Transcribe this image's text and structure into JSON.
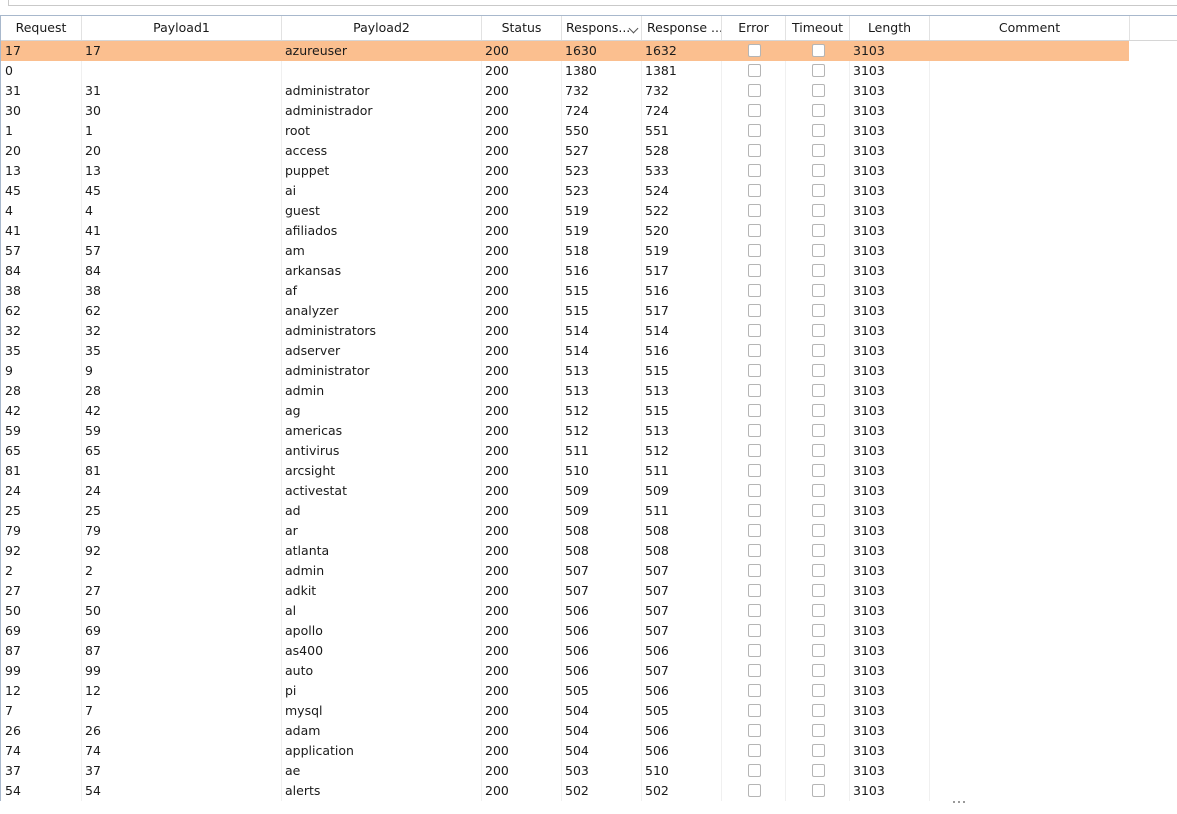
{
  "table": {
    "columns": [
      {
        "label": "Request"
      },
      {
        "label": "Payload1"
      },
      {
        "label": "Payload2"
      },
      {
        "label": "Status"
      },
      {
        "label": "Respons..."
      },
      {
        "label": "Response ..."
      },
      {
        "label": "Error"
      },
      {
        "label": "Timeout"
      },
      {
        "label": "Length"
      },
      {
        "label": "Comment"
      }
    ],
    "sorted_column": "Respons...",
    "sort_direction": "descending",
    "selected_row_color": "#fbbf8f",
    "rows": [
      {
        "request": "17",
        "payload1": "17",
        "payload2": "azureuser",
        "status": "200",
        "resp_received": "1630",
        "resp_completed": "1632",
        "error": false,
        "timeout": false,
        "length": "3103",
        "comment": "",
        "selected": true
      },
      {
        "request": "0",
        "payload1": "",
        "payload2": "",
        "status": "200",
        "resp_received": "1380",
        "resp_completed": "1381",
        "error": false,
        "timeout": false,
        "length": "3103",
        "comment": ""
      },
      {
        "request": "31",
        "payload1": "31",
        "payload2": "administrator",
        "status": "200",
        "resp_received": "732",
        "resp_completed": "732",
        "error": false,
        "timeout": false,
        "length": "3103",
        "comment": ""
      },
      {
        "request": "30",
        "payload1": "30",
        "payload2": "administrador",
        "status": "200",
        "resp_received": "724",
        "resp_completed": "724",
        "error": false,
        "timeout": false,
        "length": "3103",
        "comment": ""
      },
      {
        "request": "1",
        "payload1": "1",
        "payload2": "root",
        "status": "200",
        "resp_received": "550",
        "resp_completed": "551",
        "error": false,
        "timeout": false,
        "length": "3103",
        "comment": ""
      },
      {
        "request": "20",
        "payload1": "20",
        "payload2": "access",
        "status": "200",
        "resp_received": "527",
        "resp_completed": "528",
        "error": false,
        "timeout": false,
        "length": "3103",
        "comment": ""
      },
      {
        "request": "13",
        "payload1": "13",
        "payload2": "puppet",
        "status": "200",
        "resp_received": "523",
        "resp_completed": "533",
        "error": false,
        "timeout": false,
        "length": "3103",
        "comment": ""
      },
      {
        "request": "45",
        "payload1": "45",
        "payload2": "ai",
        "status": "200",
        "resp_received": "523",
        "resp_completed": "524",
        "error": false,
        "timeout": false,
        "length": "3103",
        "comment": ""
      },
      {
        "request": "4",
        "payload1": "4",
        "payload2": "guest",
        "status": "200",
        "resp_received": "519",
        "resp_completed": "522",
        "error": false,
        "timeout": false,
        "length": "3103",
        "comment": ""
      },
      {
        "request": "41",
        "payload1": "41",
        "payload2": "afiliados",
        "status": "200",
        "resp_received": "519",
        "resp_completed": "520",
        "error": false,
        "timeout": false,
        "length": "3103",
        "comment": ""
      },
      {
        "request": "57",
        "payload1": "57",
        "payload2": "am",
        "status": "200",
        "resp_received": "518",
        "resp_completed": "519",
        "error": false,
        "timeout": false,
        "length": "3103",
        "comment": ""
      },
      {
        "request": "84",
        "payload1": "84",
        "payload2": "arkansas",
        "status": "200",
        "resp_received": "516",
        "resp_completed": "517",
        "error": false,
        "timeout": false,
        "length": "3103",
        "comment": ""
      },
      {
        "request": "38",
        "payload1": "38",
        "payload2": "af",
        "status": "200",
        "resp_received": "515",
        "resp_completed": "516",
        "error": false,
        "timeout": false,
        "length": "3103",
        "comment": ""
      },
      {
        "request": "62",
        "payload1": "62",
        "payload2": "analyzer",
        "status": "200",
        "resp_received": "515",
        "resp_completed": "517",
        "error": false,
        "timeout": false,
        "length": "3103",
        "comment": ""
      },
      {
        "request": "32",
        "payload1": "32",
        "payload2": "administrators",
        "status": "200",
        "resp_received": "514",
        "resp_completed": "514",
        "error": false,
        "timeout": false,
        "length": "3103",
        "comment": ""
      },
      {
        "request": "35",
        "payload1": "35",
        "payload2": "adserver",
        "status": "200",
        "resp_received": "514",
        "resp_completed": "516",
        "error": false,
        "timeout": false,
        "length": "3103",
        "comment": ""
      },
      {
        "request": "9",
        "payload1": "9",
        "payload2": "administrator",
        "status": "200",
        "resp_received": "513",
        "resp_completed": "515",
        "error": false,
        "timeout": false,
        "length": "3103",
        "comment": ""
      },
      {
        "request": "28",
        "payload1": "28",
        "payload2": "admin",
        "status": "200",
        "resp_received": "513",
        "resp_completed": "513",
        "error": false,
        "timeout": false,
        "length": "3103",
        "comment": ""
      },
      {
        "request": "42",
        "payload1": "42",
        "payload2": "ag",
        "status": "200",
        "resp_received": "512",
        "resp_completed": "515",
        "error": false,
        "timeout": false,
        "length": "3103",
        "comment": ""
      },
      {
        "request": "59",
        "payload1": "59",
        "payload2": "americas",
        "status": "200",
        "resp_received": "512",
        "resp_completed": "513",
        "error": false,
        "timeout": false,
        "length": "3103",
        "comment": ""
      },
      {
        "request": "65",
        "payload1": "65",
        "payload2": "antivirus",
        "status": "200",
        "resp_received": "511",
        "resp_completed": "512",
        "error": false,
        "timeout": false,
        "length": "3103",
        "comment": ""
      },
      {
        "request": "81",
        "payload1": "81",
        "payload2": "arcsight",
        "status": "200",
        "resp_received": "510",
        "resp_completed": "511",
        "error": false,
        "timeout": false,
        "length": "3103",
        "comment": ""
      },
      {
        "request": "24",
        "payload1": "24",
        "payload2": "activestat",
        "status": "200",
        "resp_received": "509",
        "resp_completed": "509",
        "error": false,
        "timeout": false,
        "length": "3103",
        "comment": ""
      },
      {
        "request": "25",
        "payload1": "25",
        "payload2": "ad",
        "status": "200",
        "resp_received": "509",
        "resp_completed": "511",
        "error": false,
        "timeout": false,
        "length": "3103",
        "comment": ""
      },
      {
        "request": "79",
        "payload1": "79",
        "payload2": "ar",
        "status": "200",
        "resp_received": "508",
        "resp_completed": "508",
        "error": false,
        "timeout": false,
        "length": "3103",
        "comment": ""
      },
      {
        "request": "92",
        "payload1": "92",
        "payload2": "atlanta",
        "status": "200",
        "resp_received": "508",
        "resp_completed": "508",
        "error": false,
        "timeout": false,
        "length": "3103",
        "comment": ""
      },
      {
        "request": "2",
        "payload1": "2",
        "payload2": "admin",
        "status": "200",
        "resp_received": "507",
        "resp_completed": "507",
        "error": false,
        "timeout": false,
        "length": "3103",
        "comment": ""
      },
      {
        "request": "27",
        "payload1": "27",
        "payload2": "adkit",
        "status": "200",
        "resp_received": "507",
        "resp_completed": "507",
        "error": false,
        "timeout": false,
        "length": "3103",
        "comment": ""
      },
      {
        "request": "50",
        "payload1": "50",
        "payload2": "al",
        "status": "200",
        "resp_received": "506",
        "resp_completed": "507",
        "error": false,
        "timeout": false,
        "length": "3103",
        "comment": ""
      },
      {
        "request": "69",
        "payload1": "69",
        "payload2": "apollo",
        "status": "200",
        "resp_received": "506",
        "resp_completed": "507",
        "error": false,
        "timeout": false,
        "length": "3103",
        "comment": ""
      },
      {
        "request": "87",
        "payload1": "87",
        "payload2": "as400",
        "status": "200",
        "resp_received": "506",
        "resp_completed": "506",
        "error": false,
        "timeout": false,
        "length": "3103",
        "comment": ""
      },
      {
        "request": "99",
        "payload1": "99",
        "payload2": "auto",
        "status": "200",
        "resp_received": "506",
        "resp_completed": "507",
        "error": false,
        "timeout": false,
        "length": "3103",
        "comment": ""
      },
      {
        "request": "12",
        "payload1": "12",
        "payload2": "pi",
        "status": "200",
        "resp_received": "505",
        "resp_completed": "506",
        "error": false,
        "timeout": false,
        "length": "3103",
        "comment": ""
      },
      {
        "request": "7",
        "payload1": "7",
        "payload2": "mysql",
        "status": "200",
        "resp_received": "504",
        "resp_completed": "505",
        "error": false,
        "timeout": false,
        "length": "3103",
        "comment": ""
      },
      {
        "request": "26",
        "payload1": "26",
        "payload2": "adam",
        "status": "200",
        "resp_received": "504",
        "resp_completed": "506",
        "error": false,
        "timeout": false,
        "length": "3103",
        "comment": ""
      },
      {
        "request": "74",
        "payload1": "74",
        "payload2": "application",
        "status": "200",
        "resp_received": "504",
        "resp_completed": "506",
        "error": false,
        "timeout": false,
        "length": "3103",
        "comment": ""
      },
      {
        "request": "37",
        "payload1": "37",
        "payload2": "ae",
        "status": "200",
        "resp_received": "503",
        "resp_completed": "510",
        "error": false,
        "timeout": false,
        "length": "3103",
        "comment": ""
      },
      {
        "request": "54",
        "payload1": "54",
        "payload2": "alerts",
        "status": "200",
        "resp_received": "502",
        "resp_completed": "502",
        "error": false,
        "timeout": false,
        "length": "3103",
        "comment": ""
      }
    ]
  }
}
